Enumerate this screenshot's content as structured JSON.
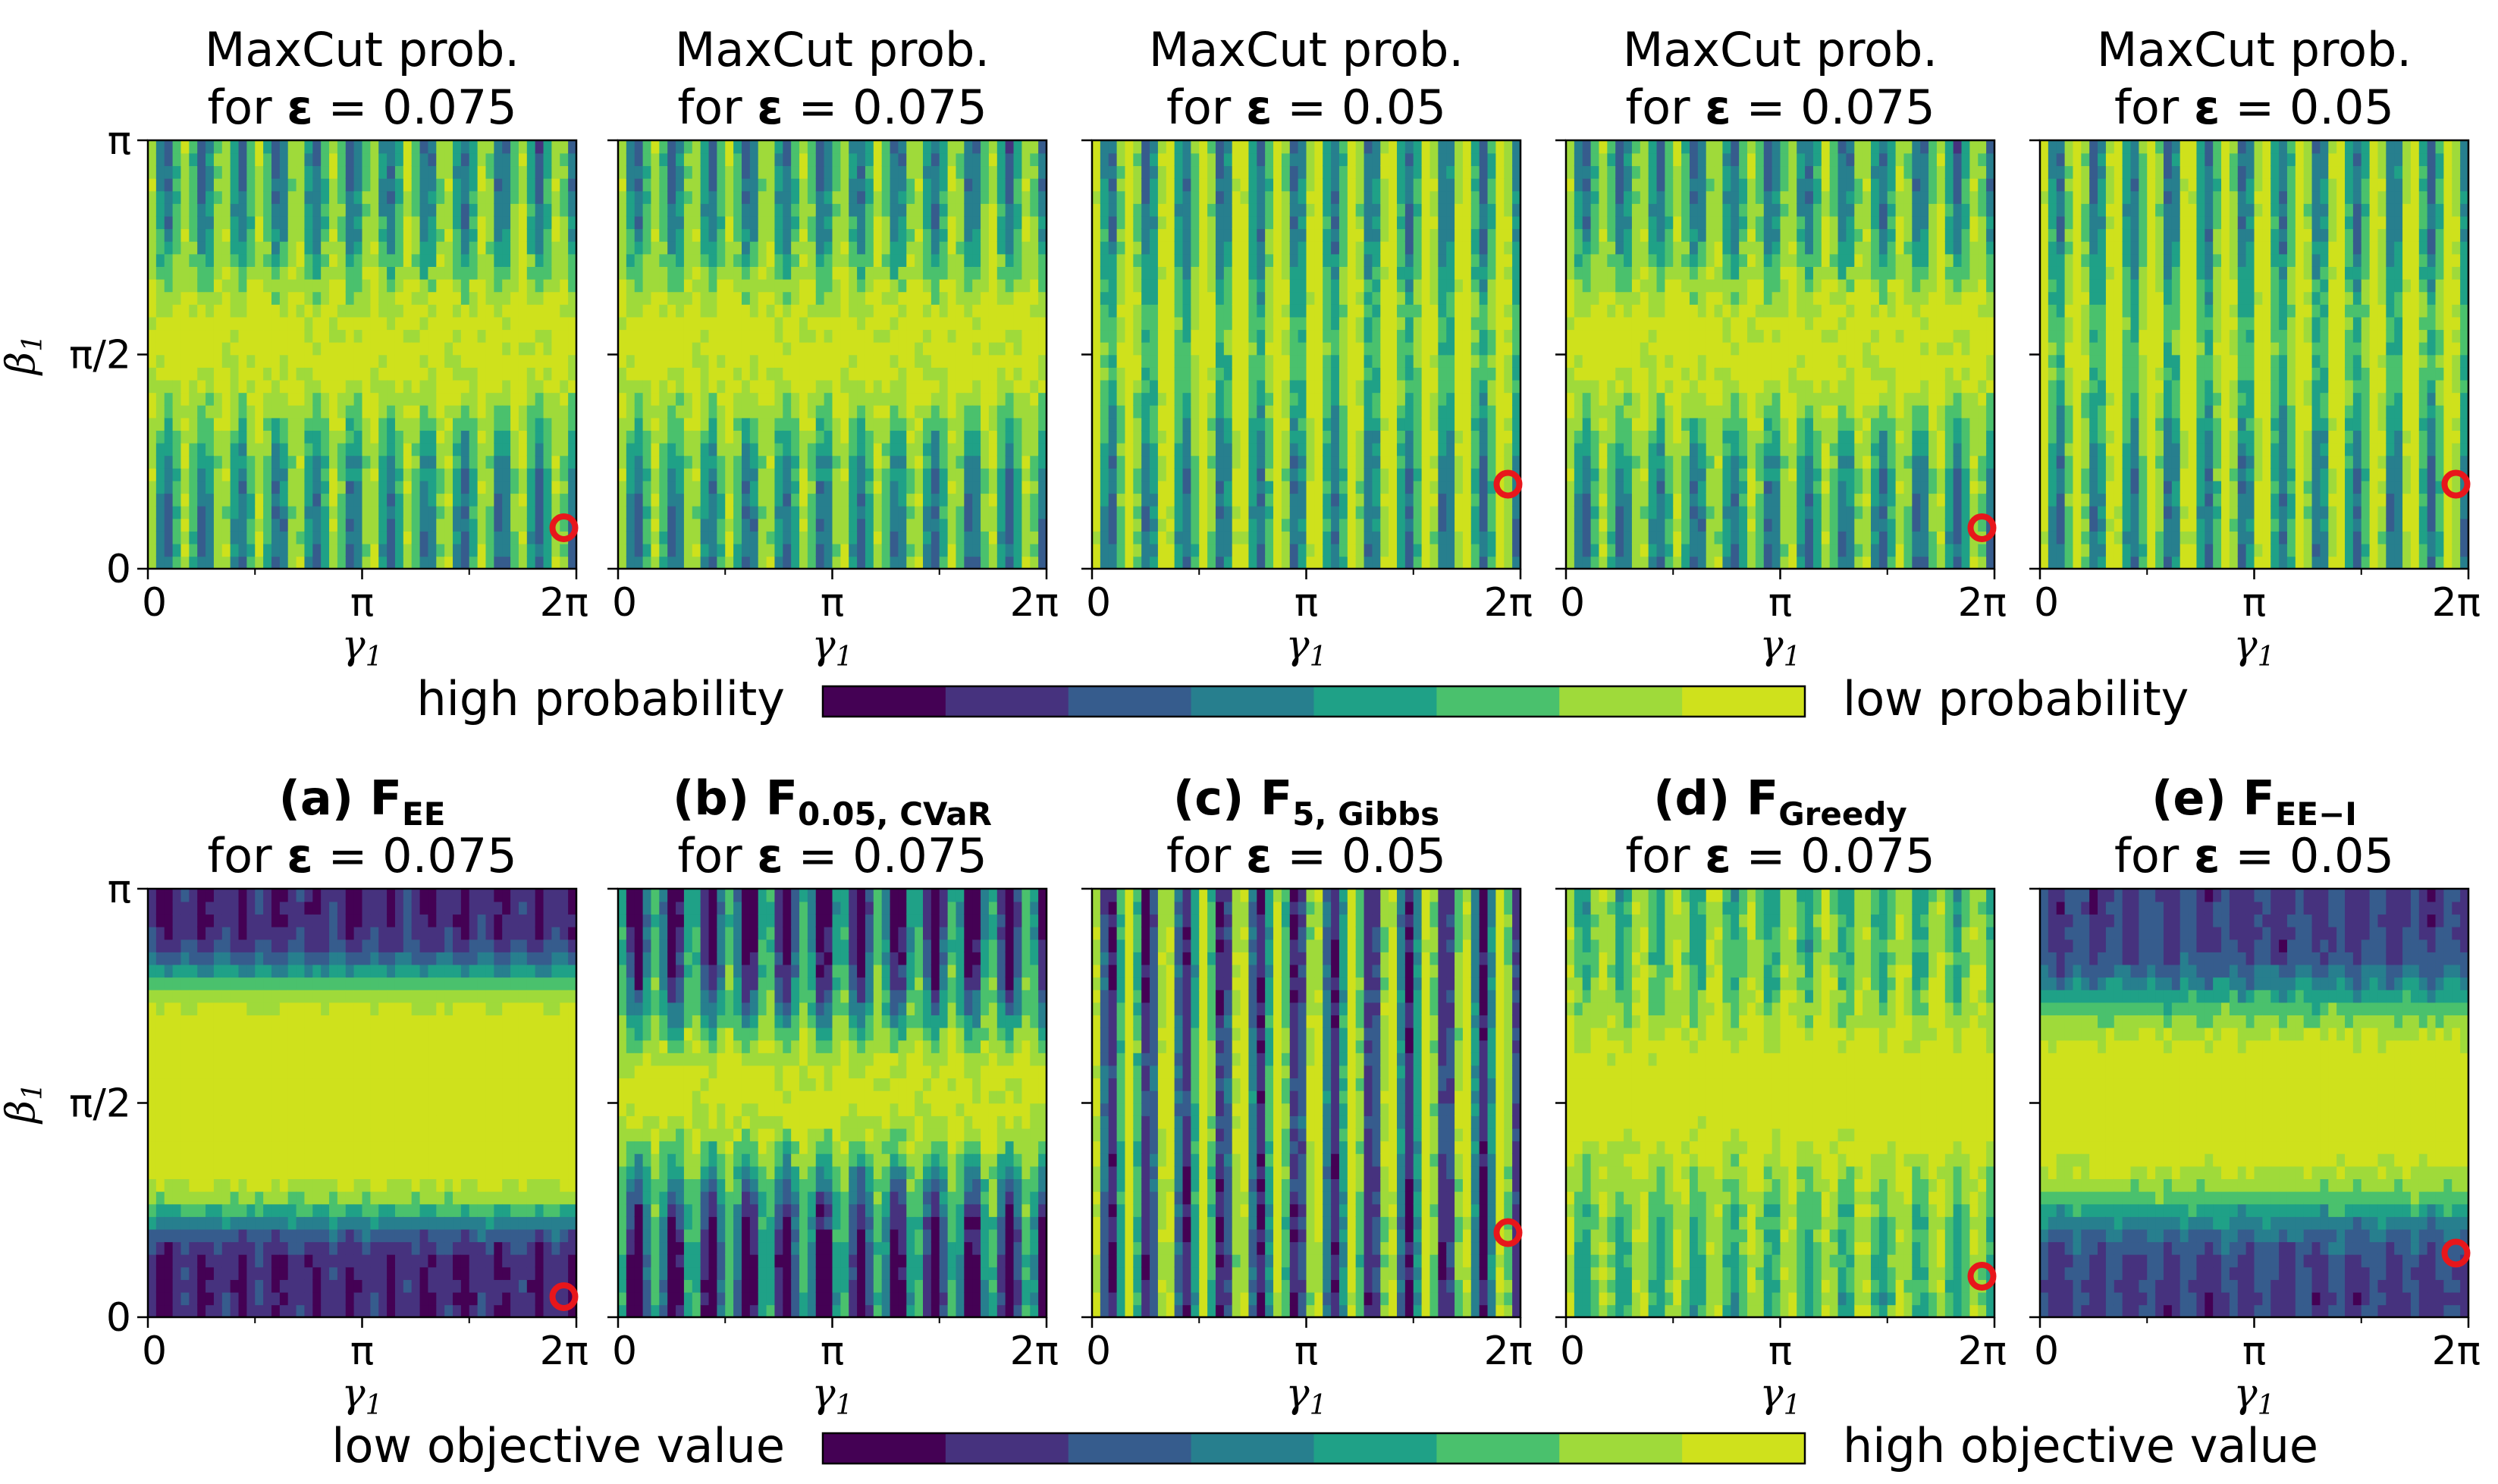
{
  "chart_data": {
    "type": "heatmap",
    "levels": [
      "#440154",
      "#46327e",
      "#365c8d",
      "#277f8e",
      "#1fa187",
      "#4ac16d",
      "#9fda3a",
      "#cfe11c"
    ],
    "x_ticks": [
      "0",
      "π",
      "2π"
    ],
    "y_ticks": [
      "0",
      "π/2",
      "π"
    ],
    "xlabel_base": "γ",
    "xlabel_sub": "1",
    "ylabel_base": "β",
    "ylabel_sub": "1",
    "xlim": [
      0,
      6.2832
    ],
    "ylim": [
      0,
      3.1416
    ],
    "marker_color": "#e8161b",
    "top_row": {
      "title_line1": "MaxCut prob.",
      "colorbar_left": "high probability",
      "colorbar_right": "low probability",
      "panels": [
        {
          "eps_prefix": "for ",
          "eps_symbol": "ε",
          "eps_suffix": " = 0.075",
          "pattern": "mc75",
          "marker": [
            6.1,
            0.3
          ]
        },
        {
          "eps_prefix": "for ",
          "eps_symbol": "ε",
          "eps_suffix": " = 0.075",
          "pattern": "mc75",
          "marker": null
        },
        {
          "eps_prefix": "for ",
          "eps_symbol": "ε",
          "eps_suffix": " = 0.05",
          "pattern": "mc05",
          "marker": [
            6.1,
            0.62
          ]
        },
        {
          "eps_prefix": "for ",
          "eps_symbol": "ε",
          "eps_suffix": " = 0.075",
          "pattern": "mc75",
          "marker": [
            6.1,
            0.3
          ]
        },
        {
          "eps_prefix": "for ",
          "eps_symbol": "ε",
          "eps_suffix": " = 0.05",
          "pattern": "mc05",
          "marker": [
            6.1,
            0.62
          ]
        }
      ]
    },
    "bottom_row": {
      "colorbar_left": "low objective value",
      "colorbar_right": "high objective value",
      "panels": [
        {
          "label": "(a) F",
          "sub": "EE",
          "eps_prefix": "for ",
          "eps_symbol": "ε",
          "eps_suffix": " = 0.075",
          "pattern": "ee",
          "marker": [
            6.1,
            0.15
          ]
        },
        {
          "label": "(b) F",
          "sub": "0.05, CVaR",
          "eps_prefix": "for ",
          "eps_symbol": "ε",
          "eps_suffix": " = 0.075",
          "pattern": "cvar",
          "marker": null
        },
        {
          "label": "(c) F",
          "sub": "5, Gibbs",
          "eps_prefix": "for ",
          "eps_symbol": "ε",
          "eps_suffix": " = 0.05",
          "pattern": "gibbs",
          "marker": [
            6.1,
            0.62
          ]
        },
        {
          "label": "(d) F",
          "sub": "Greedy",
          "eps_prefix": "for ",
          "eps_symbol": "ε",
          "eps_suffix": " = 0.075",
          "pattern": "greedy",
          "marker": [
            6.1,
            0.3
          ]
        },
        {
          "label": "(e) F",
          "sub": "EE−I",
          "eps_prefix": "for ",
          "eps_symbol": "ε",
          "eps_suffix": " = 0.05",
          "pattern": "eei",
          "marker": [
            6.1,
            0.47
          ]
        }
      ]
    }
  }
}
